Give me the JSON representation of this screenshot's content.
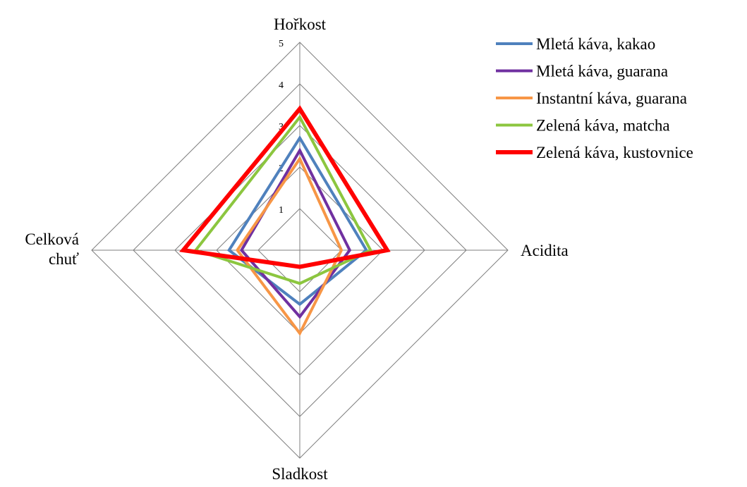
{
  "chart_data": {
    "type": "radar",
    "axes": [
      "Hořkost",
      "Acidita",
      "Sladkost",
      [
        "Celková",
        "chuť"
      ]
    ],
    "rlim": [
      0,
      5
    ],
    "ticks": [
      "1",
      "2",
      "3",
      "4",
      "5"
    ],
    "grid": true,
    "legend_position": "top-right",
    "series": [
      {
        "name": "Mletá káva, kakao",
        "color": "#4F81BD",
        "values": [
          2.7,
          1.6,
          1.3,
          1.7
        ],
        "width": 4
      },
      {
        "name": "Mletá káva, guarana",
        "color": "#7030A0",
        "values": [
          2.4,
          1.2,
          1.6,
          1.4
        ],
        "width": 4
      },
      {
        "name": "Instantní káva, guarana",
        "color": "#F79646",
        "values": [
          2.2,
          1.0,
          2.0,
          1.5
        ],
        "width": 4
      },
      {
        "name": "Zelená káva, matcha",
        "color": "#8CC63F",
        "values": [
          3.2,
          1.7,
          0.8,
          2.5
        ],
        "width": 4
      },
      {
        "name": "Zelená káva, kustovnice",
        "color": "#FF0000",
        "values": [
          3.4,
          2.1,
          0.4,
          2.8
        ],
        "width": 6
      }
    ]
  }
}
